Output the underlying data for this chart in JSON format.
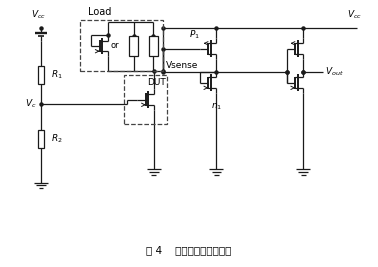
{
  "title": "图 4    预兆单元电路原理图",
  "fig_width": 3.78,
  "fig_height": 2.67,
  "bg_color": "#ffffff",
  "line_color": "#1a1a1a",
  "labels": {
    "Vcc_left": "$V_{cc}$",
    "Vc": "$V_c$",
    "R1": "$R_1$",
    "R2": "$R_2$",
    "Load": "Load",
    "or": "or",
    "Vsense": "Vsense",
    "DUT": "DUT",
    "P1": "$P_1$",
    "n1": "$n_1$",
    "Vcc_right": "$V_{cc}$",
    "Vout": "$V_{out}$"
  }
}
